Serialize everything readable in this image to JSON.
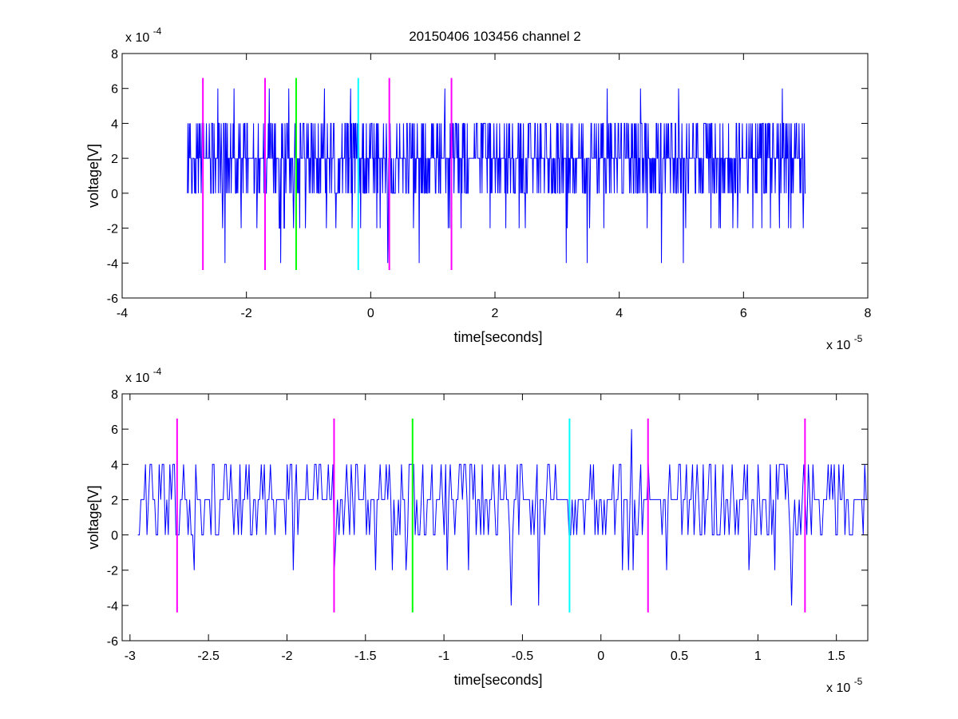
{
  "figure": {
    "title": "20150406 103456 channel 2",
    "colors": {
      "series": "#0000ff",
      "marker_magenta": "#ff00ff",
      "marker_green": "#00ff00",
      "marker_cyan": "#00ffff",
      "axes": "#000000",
      "background": "#ffffff"
    }
  },
  "chart_data": [
    {
      "type": "line",
      "xlabel": "time[seconds]",
      "ylabel": "voltage[V]",
      "x_exponent_label": "x 10",
      "x_exponent": "-5",
      "y_exponent_label": "x 10",
      "y_exponent": "-4",
      "xlim": [
        -4,
        8
      ],
      "ylim": [
        -6,
        8
      ],
      "x_ticks": [
        -4,
        -2,
        0,
        2,
        4,
        6,
        8
      ],
      "x_tick_labels": [
        "-4",
        "-2",
        "0",
        "2",
        "4",
        "6",
        "8"
      ],
      "y_ticks": [
        -6,
        -4,
        -2,
        0,
        2,
        4,
        6,
        8
      ],
      "y_tick_labels": [
        "-6",
        "-4",
        "-2",
        "0",
        "2",
        "4",
        "6",
        "8"
      ],
      "grid": false,
      "signal": {
        "x_start": -2.95,
        "x_end": 7.0,
        "levels": [
          -4,
          -2,
          0,
          2,
          4,
          6
        ],
        "baseline": 2
      },
      "markers": [
        {
          "x": -2.7,
          "color": "magenta",
          "ymin": -4.4,
          "ymax": 6.6
        },
        {
          "x": -1.7,
          "color": "magenta",
          "ymin": -4.4,
          "ymax": 6.6
        },
        {
          "x": -1.2,
          "color": "green",
          "ymin": -4.4,
          "ymax": 6.6
        },
        {
          "x": -0.2,
          "color": "cyan",
          "ymin": -4.4,
          "ymax": 6.6
        },
        {
          "x": 0.3,
          "color": "magenta",
          "ymin": -4.4,
          "ymax": 6.6
        },
        {
          "x": 1.3,
          "color": "magenta",
          "ymin": -4.4,
          "ymax": 6.6
        }
      ]
    },
    {
      "type": "line",
      "xlabel": "time[seconds]",
      "ylabel": "voltage[V]",
      "x_exponent_label": "x 10",
      "x_exponent": "-5",
      "y_exponent_label": "x 10",
      "y_exponent": "-4",
      "xlim": [
        -3.05,
        1.7
      ],
      "ylim": [
        -6,
        8
      ],
      "x_ticks": [
        -3,
        -2.5,
        -2,
        -1.5,
        -1,
        -0.5,
        0,
        0.5,
        1,
        1.5
      ],
      "x_tick_labels": [
        "-3",
        "-2.5",
        "-2",
        "-1.5",
        "-1",
        "-0.5",
        "0",
        "0.5",
        "1",
        "1.5"
      ],
      "y_ticks": [
        -6,
        -4,
        -2,
        0,
        2,
        4,
        6,
        8
      ],
      "y_tick_labels": [
        "-6",
        "-4",
        "-2",
        "0",
        "2",
        "4",
        "6",
        "8"
      ],
      "grid": false,
      "signal": {
        "x_start": -2.95,
        "x_end": 1.7,
        "levels": [
          -4,
          -2,
          0,
          2,
          4,
          6
        ],
        "baseline": 2
      },
      "markers": [
        {
          "x": -2.7,
          "color": "magenta",
          "ymin": -4.4,
          "ymax": 6.6
        },
        {
          "x": -1.7,
          "color": "magenta",
          "ymin": -4.4,
          "ymax": 6.6
        },
        {
          "x": -1.2,
          "color": "green",
          "ymin": -4.4,
          "ymax": 6.6
        },
        {
          "x": -0.2,
          "color": "cyan",
          "ymin": -4.4,
          "ymax": 6.6
        },
        {
          "x": 0.3,
          "color": "magenta",
          "ymin": -4.4,
          "ymax": 6.6
        },
        {
          "x": 1.3,
          "color": "magenta",
          "ymin": -4.4,
          "ymax": 6.6
        }
      ]
    }
  ]
}
